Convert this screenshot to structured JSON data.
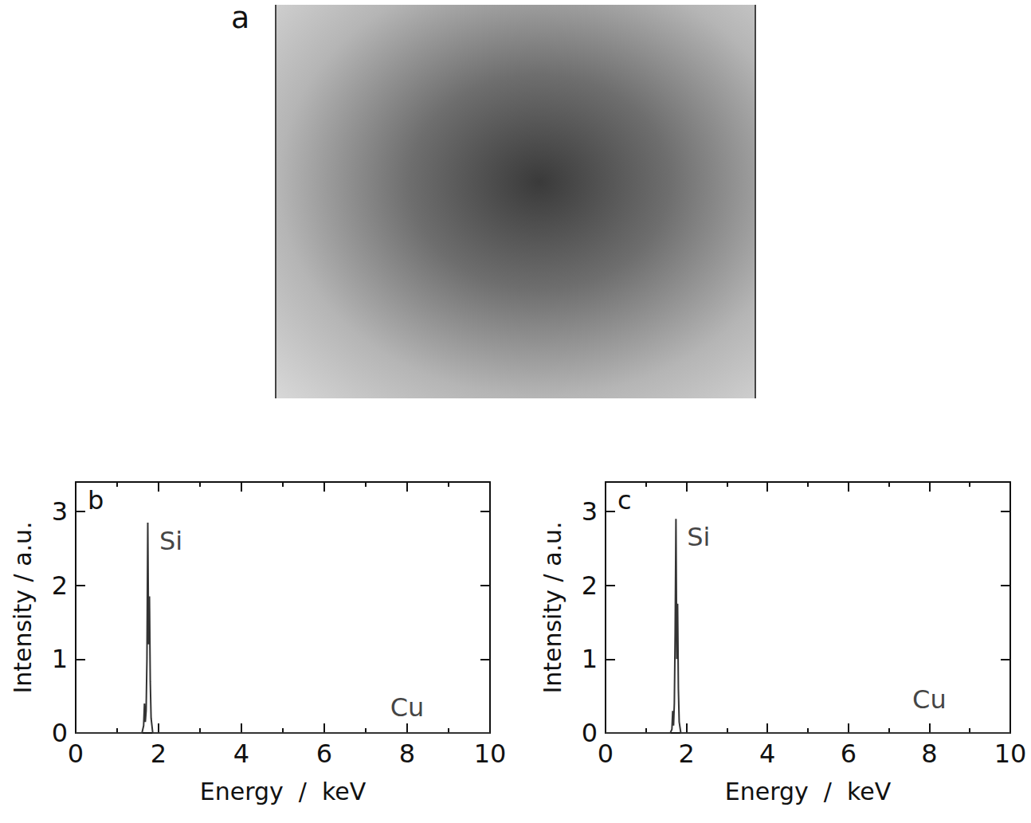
{
  "image_panel": {
    "label": "a"
  },
  "chart_data": [
    {
      "type": "line",
      "title": "b",
      "color": "#333333",
      "x": [
        0,
        1.6,
        1.64,
        1.66,
        1.68,
        1.7,
        1.72,
        1.74,
        1.76,
        1.78,
        1.8,
        1.82,
        1.86,
        10
      ],
      "values": [
        0,
        0,
        0.1,
        0.4,
        0.15,
        0.3,
        1.0,
        2.85,
        1.2,
        1.85,
        0.7,
        0.2,
        0,
        0
      ],
      "xlabel": "Energy  /  keV",
      "ylabel": "Intensity / a.u.",
      "xlim": [
        0,
        10
      ],
      "xticks": [
        0,
        2,
        4,
        6,
        8,
        10
      ],
      "ylim": [
        0,
        3.4
      ],
      "yticks": [
        0,
        1,
        2,
        3
      ],
      "annotations": [
        {
          "text": "Si",
          "x": 2.3,
          "y": 2.6
        },
        {
          "text": "Cu",
          "x": 8.0,
          "y": 0.35
        }
      ]
    },
    {
      "type": "line",
      "title": "c",
      "color": "#333333",
      "x": [
        0,
        1.6,
        1.64,
        1.66,
        1.68,
        1.7,
        1.72,
        1.74,
        1.76,
        1.78,
        1.8,
        1.82,
        1.86,
        10
      ],
      "values": [
        0,
        0,
        0.05,
        0.3,
        0.1,
        0.4,
        1.35,
        2.9,
        1.0,
        1.75,
        0.6,
        0.15,
        0,
        0
      ],
      "xlabel": "Energy  /  keV",
      "ylabel": "Intensity / a.u.",
      "xlim": [
        0,
        10
      ],
      "xticks": [
        0,
        2,
        4,
        6,
        8,
        10
      ],
      "ylim": [
        0,
        3.4
      ],
      "yticks": [
        0,
        1,
        2,
        3
      ],
      "annotations": [
        {
          "text": "Si",
          "x": 2.3,
          "y": 2.65
        },
        {
          "text": "Cu",
          "x": 8.0,
          "y": 0.45
        }
      ]
    }
  ]
}
